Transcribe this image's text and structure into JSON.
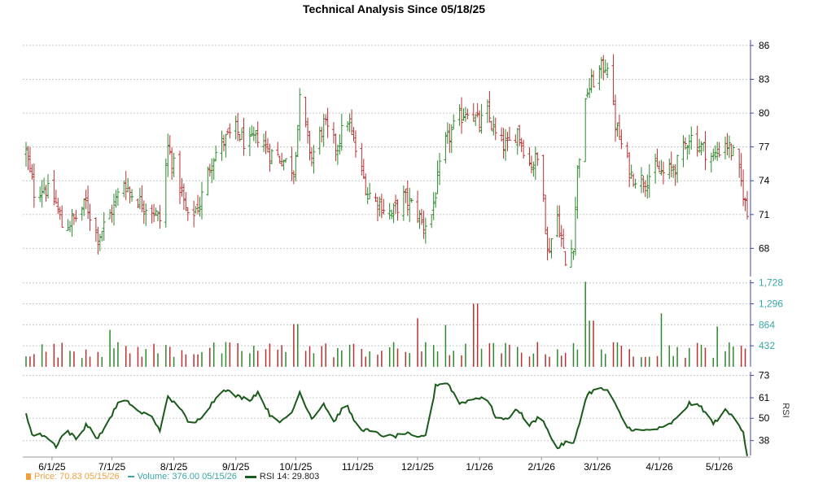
{
  "chart_data": {
    "type": "ohlc",
    "title": "Technical Analysis Since 05/18/25",
    "x_ticks": [
      "6/1/25",
      "7/1/25",
      "8/1/25",
      "9/1/25",
      "10/1/25",
      "11/1/25",
      "12/1/25",
      "1/1/26",
      "2/1/26",
      "3/1/26",
      "4/1/26",
      "5/1/26"
    ],
    "price_axis": {
      "ticks": [
        68,
        71,
        74,
        77,
        80,
        83,
        86
      ],
      "ylim": [
        65.5,
        86.5
      ],
      "side": "right"
    },
    "volume_axis": {
      "tick_labels": [
        "432",
        "864",
        "1,296",
        "1,728"
      ],
      "ticks": [
        432,
        864,
        1296,
        1728
      ],
      "ylim": [
        0,
        1790
      ]
    },
    "rsi_axis": {
      "ticks": [
        38,
        50,
        61,
        73
      ],
      "ylim": [
        30,
        75
      ],
      "label": "RSI"
    },
    "price_anchors": [
      [
        "2025-05-19",
        76.5
      ],
      [
        "2025-05-23",
        73.0
      ],
      [
        "2025-05-28",
        73.5
      ],
      [
        "2025-06-03",
        72.0
      ],
      [
        "2025-06-06",
        70.0
      ],
      [
        "2025-06-12",
        70.5
      ],
      [
        "2025-06-18",
        72.0
      ],
      [
        "2025-06-24",
        69.0
      ],
      [
        "2025-06-30",
        71.0
      ],
      [
        "2025-07-07",
        74.0
      ],
      [
        "2025-07-10",
        73.0
      ],
      [
        "2025-07-16",
        72.0
      ],
      [
        "2025-07-21",
        71.5
      ],
      [
        "2025-07-25",
        70.5
      ],
      [
        "2025-07-29",
        77.0
      ],
      [
        "2025-08-04",
        73.5
      ],
      [
        "2025-08-08",
        70.5
      ],
      [
        "2025-08-14",
        72.0
      ],
      [
        "2025-08-20",
        76.0
      ],
      [
        "2025-08-26",
        77.5
      ],
      [
        "2025-09-01",
        78.5
      ],
      [
        "2025-09-07",
        77.0
      ],
      [
        "2025-09-12",
        78.0
      ],
      [
        "2025-09-18",
        76.5
      ],
      [
        "2025-09-24",
        76.0
      ],
      [
        "2025-09-30",
        75.0
      ],
      [
        "2025-10-03",
        81.0
      ],
      [
        "2025-10-09",
        76.0
      ],
      [
        "2025-10-15",
        79.0
      ],
      [
        "2025-10-21",
        77.0
      ],
      [
        "2025-10-27",
        79.5
      ],
      [
        "2025-11-01",
        76.0
      ],
      [
        "2025-11-06",
        73.0
      ],
      [
        "2025-11-12",
        72.0
      ],
      [
        "2025-11-18",
        71.0
      ],
      [
        "2025-11-24",
        72.5
      ],
      [
        "2025-11-30",
        71.5
      ],
      [
        "2025-12-04",
        70.0
      ],
      [
        "2025-12-08",
        71.0
      ],
      [
        "2025-12-14",
        77.0
      ],
      [
        "2025-12-20",
        79.0
      ],
      [
        "2025-12-26",
        80.5
      ],
      [
        "2026-01-01",
        79.0
      ],
      [
        "2026-01-05",
        80.0
      ],
      [
        "2026-01-10",
        77.5
      ],
      [
        "2026-01-15",
        77.0
      ],
      [
        "2026-01-20",
        78.5
      ],
      [
        "2026-01-26",
        75.5
      ],
      [
        "2026-02-01",
        76.0
      ],
      [
        "2026-02-04",
        67.5
      ],
      [
        "2026-02-09",
        71.0
      ],
      [
        "2026-02-13",
        66.5
      ],
      [
        "2026-02-17",
        68.5
      ],
      [
        "2026-02-19",
        75.0
      ],
      [
        "2026-02-24",
        82.0
      ],
      [
        "2026-03-01",
        83.5
      ],
      [
        "2026-03-06",
        84.5
      ],
      [
        "2026-03-10",
        79.0
      ],
      [
        "2026-03-14",
        76.5
      ],
      [
        "2026-03-18",
        74.5
      ],
      [
        "2026-03-24",
        74.0
      ],
      [
        "2026-03-30",
        75.0
      ],
      [
        "2026-04-04",
        74.5
      ],
      [
        "2026-04-10",
        75.5
      ],
      [
        "2026-04-16",
        78.0
      ],
      [
        "2026-04-22",
        77.0
      ],
      [
        "2026-04-28",
        76.0
      ],
      [
        "2026-05-04",
        77.5
      ],
      [
        "2026-05-09",
        76.0
      ],
      [
        "2026-05-13",
        73.0
      ],
      [
        "2026-05-15",
        70.83
      ]
    ],
    "volume_spikes": [
      [
        "2025-06-22",
        820
      ],
      [
        "2025-06-29",
        760
      ],
      [
        "2025-10-01",
        880
      ],
      [
        "2025-12-01",
        1000
      ],
      [
        "2025-12-15",
        860
      ],
      [
        "2025-12-30",
        1300
      ],
      [
        "2026-02-23",
        1750
      ],
      [
        "2026-02-26",
        950
      ],
      [
        "2026-04-03",
        1100
      ],
      [
        "2026-04-30",
        830
      ]
    ],
    "rsi_anchors": [
      [
        "2025-05-19",
        53
      ],
      [
        "2025-05-22",
        41
      ],
      [
        "2025-05-28",
        41
      ],
      [
        "2025-06-03",
        35
      ],
      [
        "2025-06-08",
        44
      ],
      [
        "2025-06-14",
        38
      ],
      [
        "2025-06-18",
        47
      ],
      [
        "2025-06-24",
        39
      ],
      [
        "2025-06-30",
        50
      ],
      [
        "2025-07-05",
        60
      ],
      [
        "2025-07-10",
        58
      ],
      [
        "2025-07-15",
        53
      ],
      [
        "2025-07-20",
        52
      ],
      [
        "2025-07-25",
        44
      ],
      [
        "2025-07-29",
        61
      ],
      [
        "2025-08-05",
        55
      ],
      [
        "2025-08-09",
        45
      ],
      [
        "2025-08-14",
        50
      ],
      [
        "2025-08-20",
        58
      ],
      [
        "2025-08-26",
        66
      ],
      [
        "2025-09-01",
        62
      ],
      [
        "2025-09-08",
        60
      ],
      [
        "2025-09-12",
        64
      ],
      [
        "2025-09-18",
        52
      ],
      [
        "2025-09-24",
        48
      ],
      [
        "2025-09-29",
        53
      ],
      [
        "2025-10-03",
        64
      ],
      [
        "2025-10-09",
        50
      ],
      [
        "2025-10-15",
        58
      ],
      [
        "2025-10-20",
        48
      ],
      [
        "2025-10-26",
        58
      ],
      [
        "2025-11-01",
        45
      ],
      [
        "2025-11-07",
        43
      ],
      [
        "2025-11-13",
        41
      ],
      [
        "2025-11-19",
        40
      ],
      [
        "2025-11-25",
        42
      ],
      [
        "2025-12-01",
        39
      ],
      [
        "2025-12-06",
        42
      ],
      [
        "2025-12-10",
        68
      ],
      [
        "2025-12-16",
        69
      ],
      [
        "2025-12-22",
        58
      ],
      [
        "2025-12-28",
        60
      ],
      [
        "2026-01-04",
        62
      ],
      [
        "2026-01-09",
        51
      ],
      [
        "2026-01-14",
        49
      ],
      [
        "2026-01-20",
        55
      ],
      [
        "2026-01-26",
        46
      ],
      [
        "2026-02-01",
        52
      ],
      [
        "2026-02-05",
        41
      ],
      [
        "2026-02-09",
        34
      ],
      [
        "2026-02-13",
        37
      ],
      [
        "2026-02-17",
        36
      ],
      [
        "2026-02-19",
        44
      ],
      [
        "2026-02-24",
        63
      ],
      [
        "2026-03-01",
        66
      ],
      [
        "2026-03-06",
        65
      ],
      [
        "2026-03-11",
        55
      ],
      [
        "2026-03-16",
        45
      ],
      [
        "2026-03-22",
        43
      ],
      [
        "2026-03-29",
        44
      ],
      [
        "2026-04-04",
        45
      ],
      [
        "2026-04-10",
        50
      ],
      [
        "2026-04-16",
        58
      ],
      [
        "2026-04-22",
        56
      ],
      [
        "2026-04-28",
        47
      ],
      [
        "2026-05-04",
        54
      ],
      [
        "2026-05-09",
        50
      ],
      [
        "2026-05-13",
        43
      ],
      [
        "2026-05-15",
        29.803
      ]
    ],
    "colors": {
      "up": "#2d8a2d",
      "down": "#b83232",
      "rsi": "#1a5a1a",
      "grid": "#c8c8c8",
      "price_legend": "#f0a040",
      "volume_legend": "#3aa7a7"
    }
  },
  "legend": {
    "price": "Price: 70.83  05/15/26",
    "volume": "Volume: 376.00  05/15/26",
    "rsi": "RSI 14: 29.803"
  }
}
